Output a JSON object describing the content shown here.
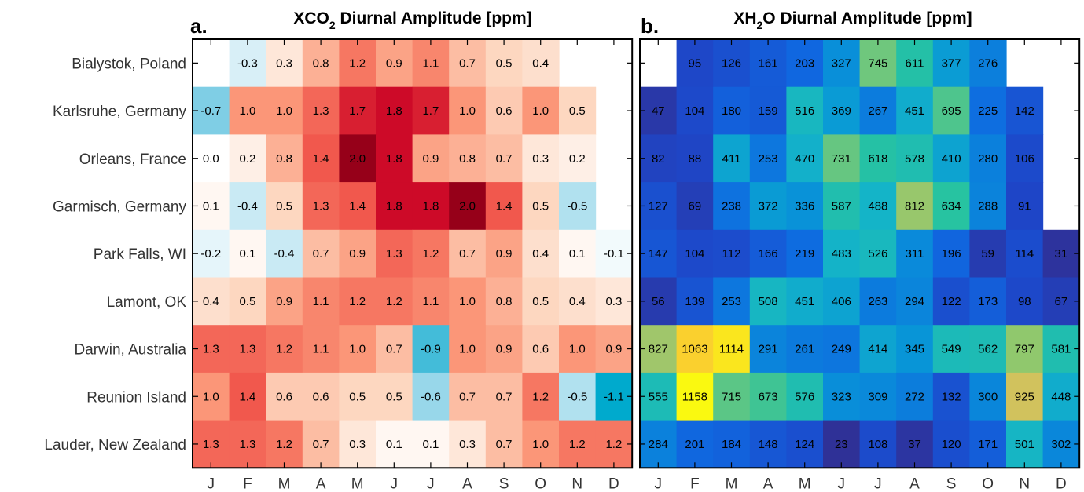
{
  "chart_data": [
    {
      "type": "heatmap",
      "panel_label": "a.",
      "title_prefix": "XCO",
      "title_sub": "2",
      "title_suffix": " Diurnal Amplitude [ppm]",
      "rows": [
        "Bialystok, Poland",
        "Karlsruhe, Germany",
        "Orleans, France",
        "Garmisch, Germany",
        "Park Falls, WI",
        "Lamont, OK",
        "Darwin, Australia",
        "Reunion Island",
        "Lauder, New Zealand"
      ],
      "columns": [
        "J",
        "F",
        "M",
        "A",
        "M",
        "J",
        "J",
        "A",
        "S",
        "O",
        "N",
        "D"
      ],
      "colormap": "diverging blue-white-red",
      "values": [
        [
          null,
          "-0.3",
          "0.3",
          "0.8",
          "1.2",
          "0.9",
          "1.1",
          "0.7",
          "0.5",
          "0.4",
          null,
          null
        ],
        [
          "-0.7",
          "1.0",
          "1.0",
          "1.3",
          "1.7",
          "1.8",
          "1.7",
          "1.0",
          "0.6",
          "1.0",
          "0.5",
          null
        ],
        [
          "0.0",
          "0.2",
          "0.8",
          "1.4",
          "2.0",
          "1.8",
          "0.9",
          "0.8",
          "0.7",
          "0.3",
          "0.2",
          null
        ],
        [
          "0.1",
          "-0.4",
          "0.5",
          "1.3",
          "1.4",
          "1.8",
          "1.8",
          "2.0",
          "1.4",
          "0.5",
          "-0.5",
          null
        ],
        [
          "-0.2",
          "0.1",
          "-0.4",
          "0.7",
          "0.9",
          "1.3",
          "1.2",
          "0.7",
          "0.9",
          "0.4",
          "0.1",
          "-0.1"
        ],
        [
          "0.4",
          "0.5",
          "0.9",
          "1.1",
          "1.2",
          "1.2",
          "1.1",
          "1.0",
          "0.8",
          "0.5",
          "0.4",
          "0.3"
        ],
        [
          "1.3",
          "1.3",
          "1.2",
          "1.1",
          "1.0",
          "0.7",
          "-0.9",
          "1.0",
          "0.9",
          "0.6",
          "1.0",
          "0.9"
        ],
        [
          "1.0",
          "1.4",
          "0.6",
          "0.6",
          "0.5",
          "0.5",
          "-0.6",
          "0.7",
          "0.7",
          "1.2",
          "-0.5",
          "-1.1"
        ],
        [
          "1.3",
          "1.3",
          "1.2",
          "0.7",
          "0.3",
          "0.1",
          "0.1",
          "0.3",
          "0.7",
          "1.0",
          "1.2",
          "1.2"
        ]
      ]
    },
    {
      "type": "heatmap",
      "panel_label": "b.",
      "title_prefix": "XH",
      "title_sub": "2",
      "title_suffix": "O Diurnal Amplitude [ppm]",
      "rows": [
        "Bialystok, Poland",
        "Karlsruhe, Germany",
        "Orleans, France",
        "Garmisch, Germany",
        "Park Falls, WI",
        "Lamont, OK",
        "Darwin, Australia",
        "Reunion Island",
        "Lauder, New Zealand"
      ],
      "columns": [
        "J",
        "F",
        "M",
        "A",
        "M",
        "J",
        "J",
        "A",
        "S",
        "O",
        "N",
        "D"
      ],
      "colormap": "parula",
      "values": [
        [
          null,
          "95",
          "126",
          "161",
          "203",
          "327",
          "745",
          "611",
          "377",
          "276",
          null,
          null
        ],
        [
          "47",
          "104",
          "180",
          "159",
          "516",
          "369",
          "267",
          "451",
          "695",
          "225",
          "142",
          null
        ],
        [
          "82",
          "88",
          "411",
          "253",
          "470",
          "731",
          "618",
          "578",
          "410",
          "280",
          "106",
          null
        ],
        [
          "127",
          "69",
          "238",
          "372",
          "336",
          "587",
          "488",
          "812",
          "634",
          "288",
          "91",
          null
        ],
        [
          "147",
          "104",
          "112",
          "166",
          "219",
          "483",
          "526",
          "311",
          "196",
          "59",
          "114",
          "31"
        ],
        [
          "56",
          "139",
          "253",
          "508",
          "451",
          "406",
          "263",
          "294",
          "122",
          "173",
          "98",
          "67"
        ],
        [
          "827",
          "1063",
          "1114",
          "291",
          "261",
          "249",
          "414",
          "345",
          "549",
          "562",
          "797",
          "581"
        ],
        [
          "555",
          "1158",
          "715",
          "673",
          "576",
          "323",
          "309",
          "272",
          "132",
          "300",
          "925",
          "448"
        ],
        [
          "284",
          "201",
          "184",
          "148",
          "124",
          "23",
          "108",
          "37",
          "120",
          "171",
          "501",
          "302"
        ]
      ]
    }
  ]
}
